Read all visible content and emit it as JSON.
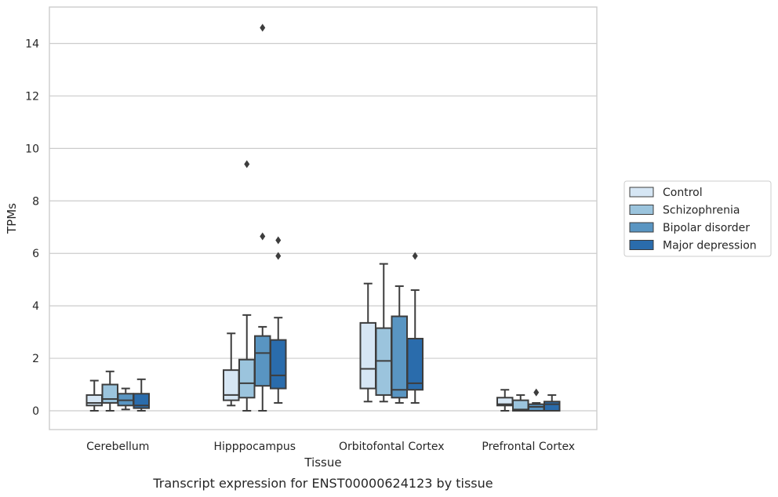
{
  "chart_data": {
    "type": "box",
    "caption": "Transcript expression for ENST00000624123 by tissue",
    "xlabel": "Tissue",
    "ylabel": "TPMs",
    "ylim": [
      -0.7,
      15.4
    ],
    "yticks": [
      0,
      2,
      4,
      6,
      8,
      10,
      12,
      14
    ],
    "grid": "horizontal",
    "legend_position": "right",
    "categories": [
      "Cerebellum",
      "Hipppocampus",
      "Orbitofontal Cortex",
      "Prefrontal Cortex"
    ],
    "series": [
      {
        "name": "Control",
        "color": "#d6e6f4",
        "boxes": [
          {
            "whisker_low": 0.0,
            "q1": 0.2,
            "median": 0.3,
            "q3": 0.6,
            "whisker_high": 1.15,
            "outliers": []
          },
          {
            "whisker_low": 0.2,
            "q1": 0.4,
            "median": 0.6,
            "q3": 1.55,
            "whisker_high": 2.95,
            "outliers": []
          },
          {
            "whisker_low": 0.35,
            "q1": 0.85,
            "median": 1.6,
            "q3": 3.35,
            "whisker_high": 4.85,
            "outliers": []
          },
          {
            "whisker_low": 0.0,
            "q1": 0.2,
            "median": 0.25,
            "q3": 0.5,
            "whisker_high": 0.8,
            "outliers": []
          }
        ]
      },
      {
        "name": "Schizophrenia",
        "color": "#9bc4dd",
        "boxes": [
          {
            "whisker_low": 0.0,
            "q1": 0.3,
            "median": 0.45,
            "q3": 1.0,
            "whisker_high": 1.5,
            "outliers": []
          },
          {
            "whisker_low": 0.0,
            "q1": 0.5,
            "median": 1.05,
            "q3": 1.95,
            "whisker_high": 3.65,
            "outliers": [
              9.4
            ]
          },
          {
            "whisker_low": 0.35,
            "q1": 0.6,
            "median": 1.9,
            "q3": 3.15,
            "whisker_high": 5.6,
            "outliers": []
          },
          {
            "whisker_low": 0.0,
            "q1": 0.0,
            "median": 0.05,
            "q3": 0.4,
            "whisker_high": 0.6,
            "outliers": []
          }
        ]
      },
      {
        "name": "Bipolar disorder",
        "color": "#5995c2",
        "boxes": [
          {
            "whisker_low": 0.05,
            "q1": 0.2,
            "median": 0.4,
            "q3": 0.65,
            "whisker_high": 0.85,
            "outliers": []
          },
          {
            "whisker_low": 0.0,
            "q1": 0.95,
            "median": 2.2,
            "q3": 2.85,
            "whisker_high": 3.2,
            "outliers": [
              6.65,
              14.6
            ]
          },
          {
            "whisker_low": 0.3,
            "q1": 0.5,
            "median": 0.8,
            "q3": 3.6,
            "whisker_high": 4.75,
            "outliers": []
          },
          {
            "whisker_low": 0.0,
            "q1": 0.0,
            "median": 0.15,
            "q3": 0.25,
            "whisker_high": 0.3,
            "outliers": [
              0.7
            ]
          }
        ]
      },
      {
        "name": "Major depression",
        "color": "#2a6cac",
        "boxes": [
          {
            "whisker_low": 0.0,
            "q1": 0.1,
            "median": 0.2,
            "q3": 0.65,
            "whisker_high": 1.2,
            "outliers": []
          },
          {
            "whisker_low": 0.3,
            "q1": 0.85,
            "median": 1.35,
            "q3": 2.7,
            "whisker_high": 3.55,
            "outliers": [
              5.9,
              6.5
            ]
          },
          {
            "whisker_low": 0.3,
            "q1": 0.8,
            "median": 1.05,
            "q3": 2.75,
            "whisker_high": 4.6,
            "outliers": [
              5.9
            ]
          },
          {
            "whisker_low": 0.0,
            "q1": 0.0,
            "median": 0.25,
            "q3": 0.35,
            "whisker_high": 0.6,
            "outliers": []
          }
        ]
      }
    ]
  }
}
